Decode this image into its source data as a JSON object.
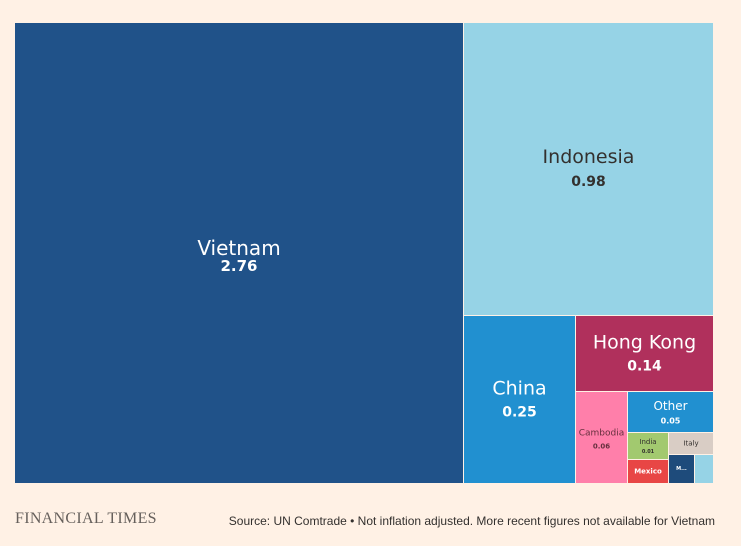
{
  "chart_data": {
    "type": "treemap",
    "items": [
      {
        "name": "Vietnam",
        "value": 2.76,
        "label": "2.76",
        "color": "#205289",
        "text_color": "#ffffff"
      },
      {
        "name": "Indonesia",
        "value": 0.98,
        "label": "0.98",
        "color": "#96d3e6",
        "text_color": "#33302e"
      },
      {
        "name": "China",
        "value": 0.25,
        "label": "0.25",
        "color": "#2190d0",
        "text_color": "#ffffff"
      },
      {
        "name": "Hong Kong",
        "value": 0.14,
        "label": "0.14",
        "color": "#b0305c",
        "text_color": "#ffffff"
      },
      {
        "name": "Cambodia",
        "value": 0.06,
        "label": "0.06",
        "color": "#ff7faa",
        "text_color": "#66303e"
      },
      {
        "name": "Other",
        "value": 0.05,
        "label": "0.05",
        "color": "#2190d0",
        "text_color": "#ffffff"
      },
      {
        "name": "India",
        "value": 0.01,
        "label": "0.01",
        "color": "#a2c96f",
        "text_color": "#33302e"
      },
      {
        "name": "Italy",
        "value": 0.01,
        "label": "",
        "color": "#d9cdc5",
        "text_color": "#33302e"
      },
      {
        "name": "Mexico",
        "value": 0.01,
        "label": "",
        "color": "#e84645",
        "text_color": "#ffffff"
      },
      {
        "name": "M...",
        "value": 0.005,
        "label": "",
        "color": "#1e4b7b",
        "text_color": "#ffffff"
      },
      {
        "name": "",
        "value": 0.004,
        "label": "",
        "color": "#96d3e6",
        "text_color": "#33302e"
      }
    ]
  },
  "footer": {
    "logo": "FINANCIAL TIMES",
    "source": "Source: UN Comtrade • Not inflation adjusted. More recent figures not available for Vietnam"
  }
}
